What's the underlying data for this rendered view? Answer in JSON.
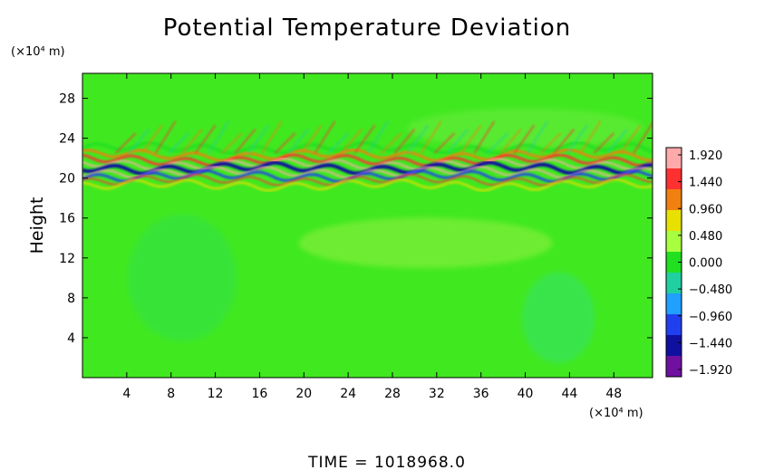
{
  "chart_data": {
    "type": "heatmap",
    "title": "Potential Temperature Deviation",
    "ylabel": "Height",
    "xlabel": "",
    "x_unit": "(×10⁴ m)",
    "y_unit": "(×10⁴ m)",
    "x_ticks": [
      "4",
      "8",
      "12",
      "16",
      "20",
      "24",
      "28",
      "32",
      "36",
      "40",
      "44",
      "48"
    ],
    "x_tick_values": [
      4,
      8,
      12,
      16,
      20,
      24,
      28,
      32,
      36,
      40,
      44,
      48
    ],
    "xlim": [
      0,
      51.5
    ],
    "y_ticks": [
      "4",
      "8",
      "12",
      "16",
      "20",
      "24",
      "28"
    ],
    "y_tick_values": [
      4,
      8,
      12,
      16,
      20,
      24,
      28
    ],
    "ylim": [
      0,
      30.5
    ],
    "colorbar_ticks": [
      "1.920",
      "1.440",
      "0.960",
      "0.480",
      "0.000",
      "−0.480",
      "−0.960",
      "−1.440",
      "−1.920"
    ],
    "colorbar_values": [
      1.92,
      1.44,
      0.96,
      0.48,
      0.0,
      -0.48,
      -0.96,
      -1.44,
      -1.92
    ],
    "colorbar_colors": [
      "#ffaaaa",
      "#ff3030",
      "#f08010",
      "#e8e000",
      "#a8ff40",
      "#20e020",
      "#20d0a0",
      "#20a0ff",
      "#2040f0",
      "#1010a0",
      "#7010a0"
    ],
    "background_color": "#40e820",
    "grid": false,
    "colorbar_position": "right",
    "features": [
      {
        "kind": "band",
        "y_center": 21.0,
        "thickness": 2.0,
        "x_range": [
          0,
          51.5
        ],
        "description_values": [
          -1.92,
          1.92
        ]
      }
    ]
  },
  "footer": {
    "time_label": "TIME  =  1018968.0"
  }
}
